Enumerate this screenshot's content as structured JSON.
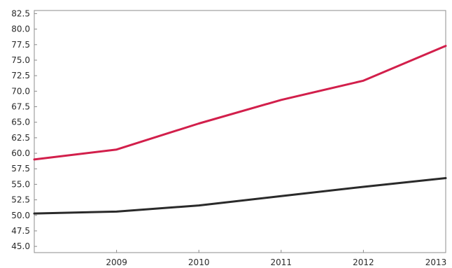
{
  "chart_data": {
    "type": "line",
    "title": "",
    "xlabel": "",
    "ylabel": "",
    "x": [
      2008,
      2009,
      2010,
      2011,
      2012,
      2013
    ],
    "x_tick_labels": [
      "2009",
      "2010",
      "2011",
      "2012",
      "2013"
    ],
    "y_tick_labels": [
      "45.0",
      "47.5",
      "50.0",
      "52.5",
      "55.0",
      "57.5",
      "60.0",
      "62.5",
      "65.0",
      "67.5",
      "70.0",
      "72.5",
      "75.0",
      "77.5",
      "80.0",
      "82.5"
    ],
    "ylim": [
      44,
      83
    ],
    "grid": false,
    "legend": "none",
    "series": [
      {
        "color": "#d21f4b",
        "values": [
          59.0,
          60.6,
          64.8,
          68.6,
          71.7,
          77.3
        ]
      },
      {
        "color": "#2a2a2a",
        "values": [
          50.3,
          50.6,
          51.6,
          53.1,
          54.6,
          56.0
        ]
      }
    ]
  }
}
